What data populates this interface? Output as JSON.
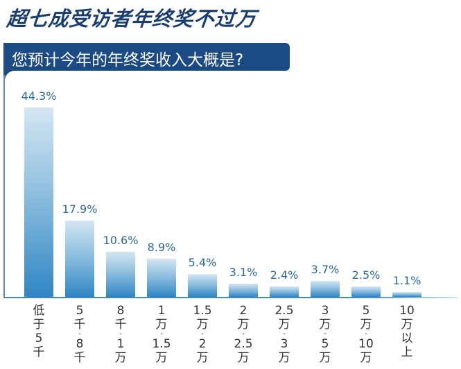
{
  "header": {
    "title": "超七成受访者年终奖不过万",
    "question": "您预计今年的年终奖收入大概是?"
  },
  "colors": {
    "title": "#1a3f6f",
    "banner": "#1b4a84",
    "bar_top": "#d4e6f3",
    "bar_bottom": "#2f86c4",
    "value_label": "#2a6a9e"
  },
  "chart_data": {
    "type": "bar",
    "title": "超七成受访者年终奖不过万",
    "subtitle": "您预计今年的年终奖收入大概是?",
    "xlabel": "",
    "ylabel": "",
    "categories": [
      "低于5千",
      "5千-8千",
      "8千-1万",
      "1万-1.5万",
      "1.5万-2万",
      "2万-2.5万",
      "2.5万-3万",
      "3万-5万",
      "5万-10万",
      "10万以上"
    ],
    "values": [
      44.3,
      17.9,
      10.6,
      8.9,
      5.4,
      3.1,
      2.4,
      3.7,
      2.5,
      1.1
    ],
    "value_labels": [
      "44.3%",
      "17.9%",
      "10.6%",
      "8.9%",
      "5.4%",
      "3.1%",
      "2.4%",
      "3.7%",
      "2.5%",
      "1.1%"
    ],
    "unit": "%",
    "ylim": [
      0,
      50
    ],
    "grid": false,
    "legend": null
  },
  "axis_labels": [
    [
      "低",
      "于",
      "5",
      "千"
    ],
    [
      "5",
      "千",
      "-",
      "8",
      "千"
    ],
    [
      "8",
      "千",
      "-",
      "1",
      "万"
    ],
    [
      "1",
      "万",
      "-",
      "1.5",
      "万"
    ],
    [
      "1.5",
      "万",
      "-",
      "2",
      "万"
    ],
    [
      "2",
      "万",
      "-",
      "2.5",
      "万"
    ],
    [
      "2.5",
      "万",
      "-",
      "3",
      "万"
    ],
    [
      "3",
      "万",
      "-",
      "5",
      "万"
    ],
    [
      "5",
      "万",
      "-",
      "10",
      "万"
    ],
    [
      "10",
      "万",
      "以",
      "上"
    ]
  ]
}
